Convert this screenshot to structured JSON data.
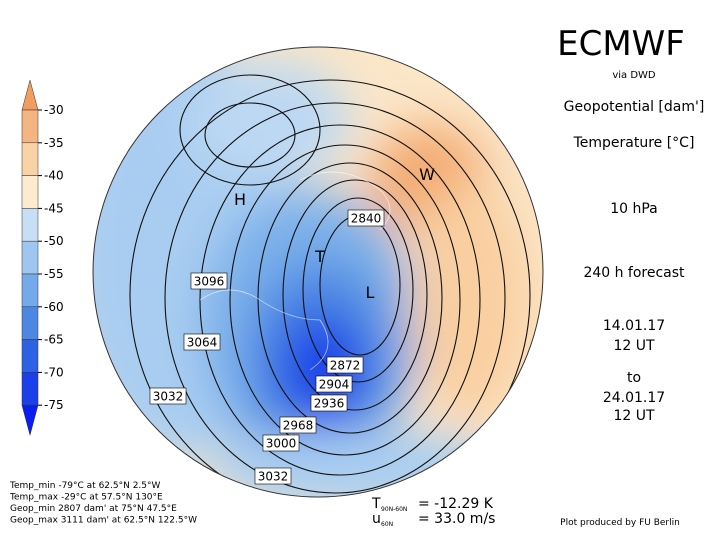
{
  "header": {
    "title": "ECMWF",
    "source": "via DWD",
    "field1": "Geopotential [dam']",
    "field2": "Temperature [°C]",
    "level": "10 hPa",
    "forecast": "240 h forecast",
    "init_date": "14.01.17",
    "init_time": "12 UT",
    "to": "to",
    "valid_date": "24.01.17",
    "valid_time": "12 UT"
  },
  "colorbar": {
    "ticks": [
      -30,
      -35,
      -40,
      -45,
      -50,
      -55,
      -60,
      -65,
      -70,
      -75
    ],
    "colors": [
      "#f19d5e",
      "#f5b583",
      "#f9d2a6",
      "#fdebcf",
      "#c7def4",
      "#9ec6ef",
      "#74a9ea",
      "#4c88e2",
      "#2e62e4",
      "#1b3fe9",
      "#0b1def"
    ]
  },
  "map": {
    "markers": [
      "H",
      "L",
      "W",
      "T"
    ],
    "contour_labels": [
      "2840",
      "3096",
      "3064",
      "3032",
      "2872",
      "2904",
      "2936",
      "2968",
      "3000",
      "3032"
    ]
  },
  "stats": [
    "Temp_min -79°C at 62.5°N 2.5°W",
    "Temp_max -29°C at 57.5°N 130°E",
    "Geop_min 2807 dam' at 75°N 47.5°E",
    "Geop_max 3111 dam' at 62.5°N 122.5°W"
  ],
  "indices": [
    {
      "symbol": "T",
      "subscript": "90N-60N",
      "value": "= -12.29 K"
    },
    {
      "symbol": "u",
      "subscript": "60N",
      "value": "= 33.0 m/s"
    }
  ],
  "credit": "Plot produced by FU Berlin"
}
